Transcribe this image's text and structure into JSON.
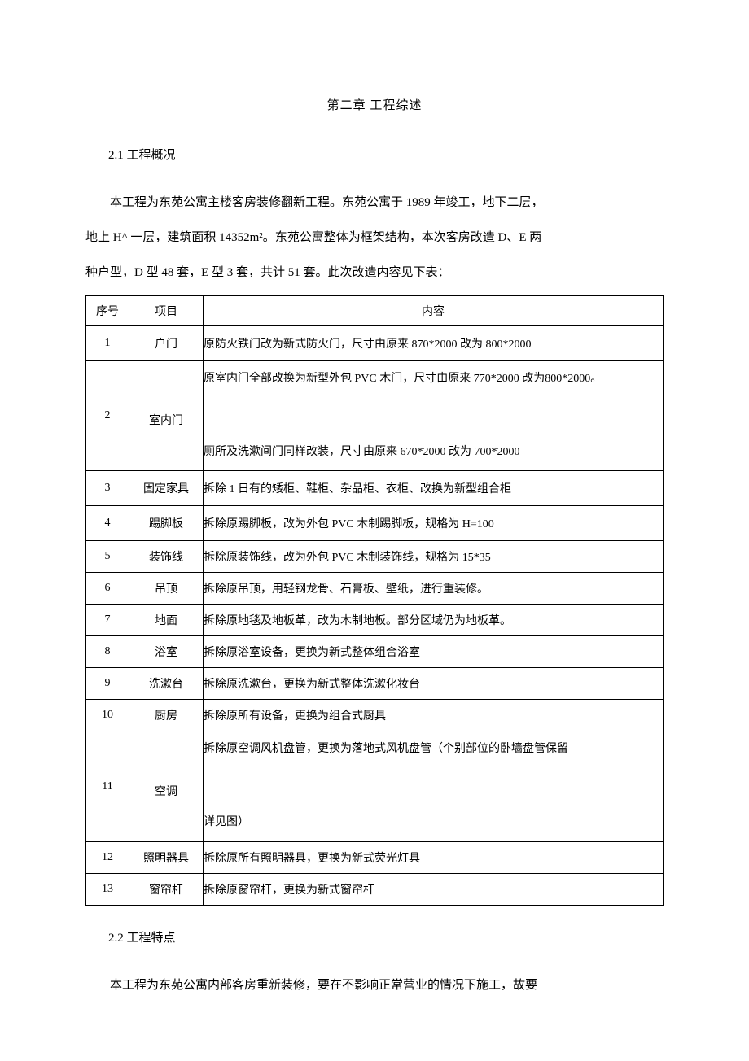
{
  "chapter_title": "第二章 工程综述",
  "section_2_1": "2.1 工程概况",
  "para1": "本工程为东苑公寓主楼客房装修翻新工程。东苑公寓于 1989 年竣工，地下二层，",
  "para2": "地上 H^ 一层，建筑面积 14352m²。东苑公寓整体为框架结构，本次客房改造 D、E 两",
  "para3": "种户型，D 型 48 套，E 型 3 套，共计 51 套。此次改造内容见下表：",
  "table": {
    "headers": {
      "idx": "序号",
      "item": "项目",
      "desc": "内容"
    },
    "rows": [
      {
        "idx": "1",
        "item": "户门",
        "desc": "原防火铁门改为新式防火门，尺寸由原来 870*2000 改为 800*2000"
      },
      {
        "idx": "2",
        "item": "室内门",
        "desc": "原室内门全部改换为新型外包 PVC 木门，尺寸由原来 770*2000 改为800*2000。<br><br>厕所及洗漱间门同样改装，尺寸由原来 670*2000 改为 700*2000"
      },
      {
        "idx": "3",
        "item": "固定家具",
        "desc": "拆除 1 日有的矮柜、鞋柜、杂品柜、衣柜、改换为新型组合柜"
      },
      {
        "idx": "4",
        "item": "踢脚板",
        "desc": "拆除原踢脚板，改为外包 PVC 木制踢脚板，规格为 H=100"
      },
      {
        "idx": "5",
        "item": "装饰线",
        "desc": "拆除原装饰线，改为外包 PVC 木制装饰线，规格为 15*35"
      },
      {
        "idx": "6",
        "item": "吊顶",
        "desc": "拆除原吊顶，用轻钢龙骨、石膏板、壁纸，进行重装修。"
      },
      {
        "idx": "7",
        "item": "地面",
        "desc": "拆除原地毯及地板革，改为木制地板。部分区域仍为地板革。"
      },
      {
        "idx": "8",
        "item": "浴室",
        "desc": "拆除原浴室设备，更换为新式整体组合浴室"
      },
      {
        "idx": "9",
        "item": "洗漱台",
        "desc": "拆除原洗漱台，更换为新式整体洗漱化妆台"
      },
      {
        "idx": "10",
        "item": "厨房",
        "desc": "拆除原所有设备，更换为组合式厨具"
      },
      {
        "idx": "11",
        "item": "空调",
        "desc": "拆除原空调风机盘管，更换为落地式风机盘管（个别部位的卧墙盘管保留<br><br>详见图）"
      },
      {
        "idx": "12",
        "item": "照明器具",
        "desc": "拆除原所有照明器具，更换为新式荧光灯具"
      },
      {
        "idx": "13",
        "item": "窗帘杆",
        "desc": "拆除原窗帘杆，更换为新式窗帘杆"
      }
    ]
  },
  "section_2_2": "2.2 工程特点",
  "para4": "本工程为东苑公寓内部客房重新装修，要在不影响正常营业的情况下施工，故要"
}
